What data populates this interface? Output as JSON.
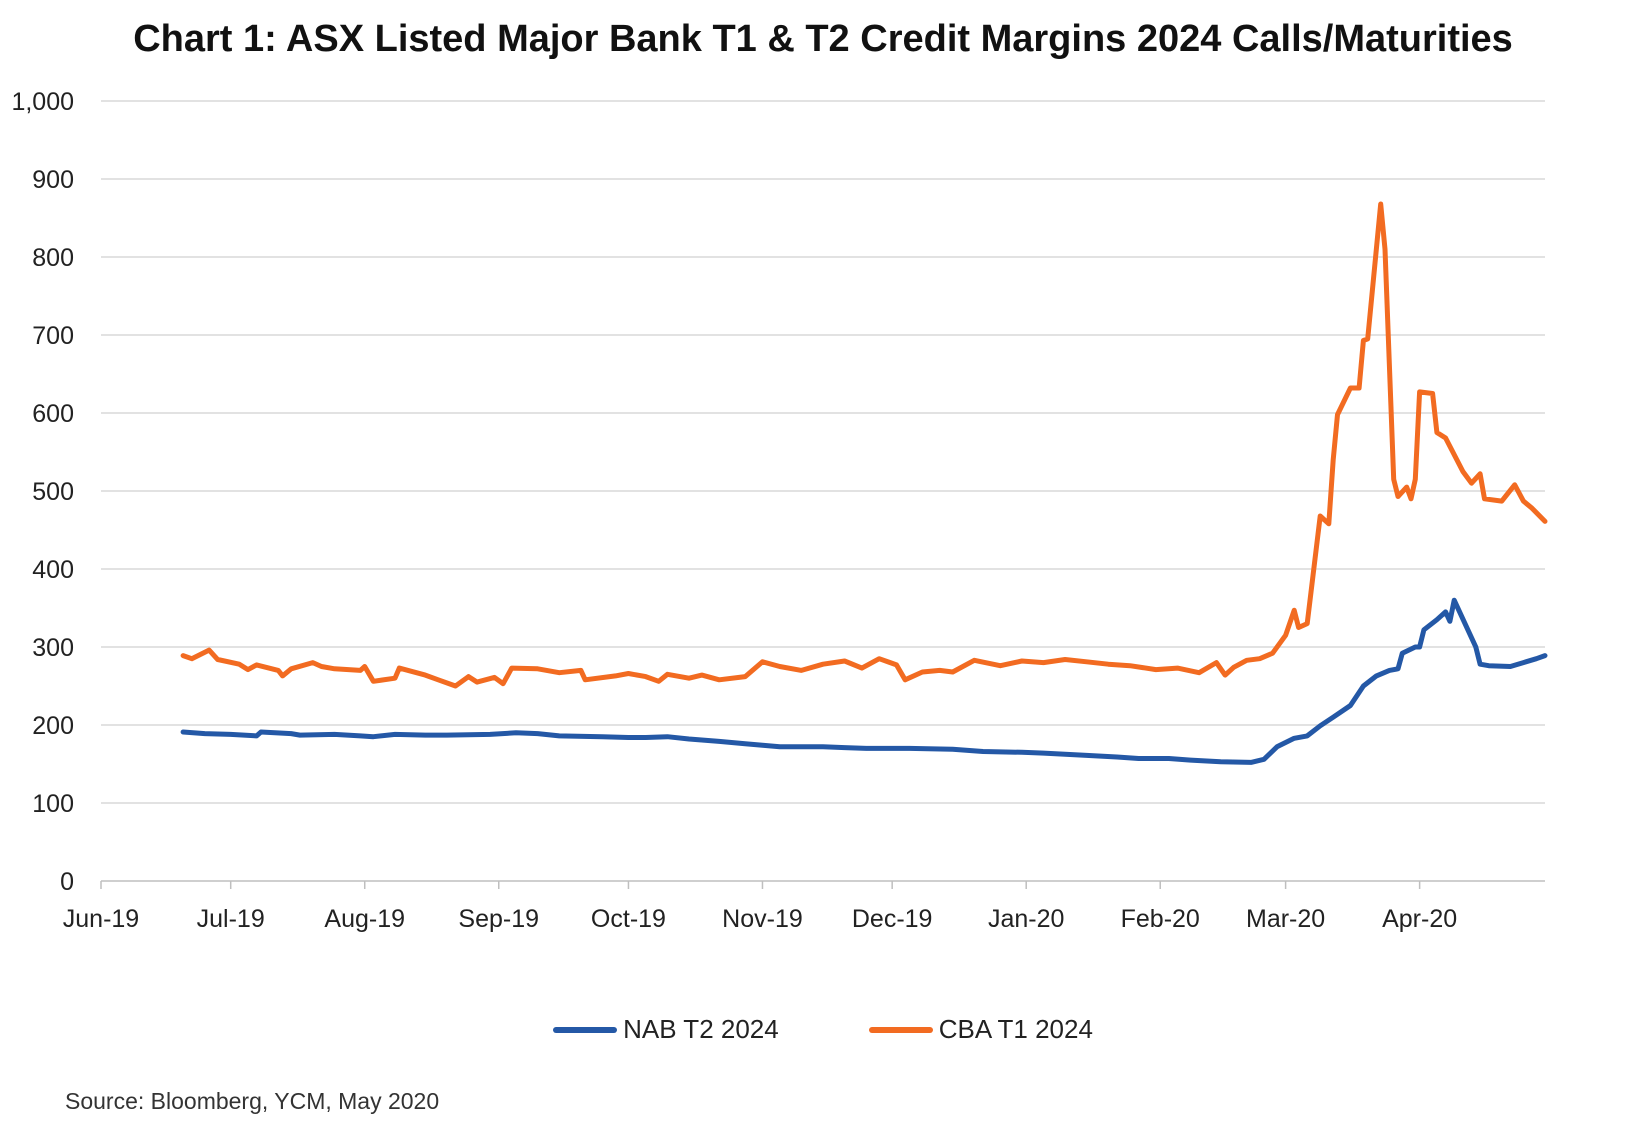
{
  "chart_data": {
    "type": "line",
    "title": "Chart 1: ASX Listed Major Bank T1 & T2 Credit Margins 2024 Calls/Maturities",
    "xlabel": "",
    "ylabel": "",
    "ylim": [
      0,
      1000
    ],
    "yticks": [
      0,
      100,
      200,
      300,
      400,
      500,
      600,
      700,
      800,
      900,
      1000
    ],
    "ytick_labels": [
      "0",
      "100",
      "200",
      "300",
      "400",
      "500",
      "600",
      "700",
      "800",
      "900",
      "1,000"
    ],
    "xlim": [
      "2019-06-01",
      "2020-04-30"
    ],
    "xticks": [
      "2019-06-01",
      "2019-07-01",
      "2019-08-01",
      "2019-09-01",
      "2019-10-01",
      "2019-11-01",
      "2019-12-01",
      "2020-01-01",
      "2020-02-01",
      "2020-03-01",
      "2020-04-01"
    ],
    "xtick_labels": [
      "Jun-19",
      "Jul-19",
      "Aug-19",
      "Sep-19",
      "Oct-19",
      "Nov-19",
      "Dec-19",
      "Jan-20",
      "Feb-20",
      "Mar-20",
      "Apr-20"
    ],
    "grid": true,
    "legend_position": "bottom",
    "series": [
      {
        "name": "NAB T2 2024",
        "color": "#2458a6",
        "points": [
          [
            "2019-06-20",
            191
          ],
          [
            "2019-06-25",
            189
          ],
          [
            "2019-07-01",
            188
          ],
          [
            "2019-07-07",
            186
          ],
          [
            "2019-07-08",
            191
          ],
          [
            "2019-07-15",
            189
          ],
          [
            "2019-07-17",
            187
          ],
          [
            "2019-07-25",
            188
          ],
          [
            "2019-07-31",
            186
          ],
          [
            "2019-08-03",
            185
          ],
          [
            "2019-08-08",
            188
          ],
          [
            "2019-08-15",
            187
          ],
          [
            "2019-08-20",
            187
          ],
          [
            "2019-08-30",
            188
          ],
          [
            "2019-09-05",
            190
          ],
          [
            "2019-09-10",
            189
          ],
          [
            "2019-09-15",
            186
          ],
          [
            "2019-09-25",
            185
          ],
          [
            "2019-10-01",
            184
          ],
          [
            "2019-10-05",
            184
          ],
          [
            "2019-10-10",
            185
          ],
          [
            "2019-10-15",
            182
          ],
          [
            "2019-10-22",
            179
          ],
          [
            "2019-10-28",
            176
          ],
          [
            "2019-11-01",
            174
          ],
          [
            "2019-11-05",
            172
          ],
          [
            "2019-11-15",
            172
          ],
          [
            "2019-11-20",
            171
          ],
          [
            "2019-11-25",
            170
          ],
          [
            "2019-12-05",
            170
          ],
          [
            "2019-12-15",
            169
          ],
          [
            "2019-12-22",
            166
          ],
          [
            "2019-12-31",
            165
          ],
          [
            "2020-01-05",
            164
          ],
          [
            "2020-01-15",
            161
          ],
          [
            "2020-01-22",
            159
          ],
          [
            "2020-01-27",
            157
          ],
          [
            "2020-02-03",
            157
          ],
          [
            "2020-02-08",
            155
          ],
          [
            "2020-02-15",
            153
          ],
          [
            "2020-02-22",
            152
          ],
          [
            "2020-02-25",
            156
          ],
          [
            "2020-02-28",
            172
          ],
          [
            "2020-03-03",
            183
          ],
          [
            "2020-03-06",
            186
          ],
          [
            "2020-03-09",
            199
          ],
          [
            "2020-03-12",
            210
          ],
          [
            "2020-03-16",
            225
          ],
          [
            "2020-03-19",
            250
          ],
          [
            "2020-03-22",
            263
          ],
          [
            "2020-03-25",
            270
          ],
          [
            "2020-03-27",
            272
          ],
          [
            "2020-03-28",
            292
          ],
          [
            "2020-03-31",
            300
          ],
          [
            "2020-04-01",
            300
          ],
          [
            "2020-04-02",
            322
          ],
          [
            "2020-04-05",
            335
          ],
          [
            "2020-04-07",
            345
          ],
          [
            "2020-04-08",
            333
          ],
          [
            "2020-04-09",
            360
          ],
          [
            "2020-04-14",
            300
          ],
          [
            "2020-04-15",
            278
          ],
          [
            "2020-04-17",
            276
          ],
          [
            "2020-04-22",
            275
          ],
          [
            "2020-04-25",
            280
          ],
          [
            "2020-04-28",
            285
          ],
          [
            "2020-04-30",
            289
          ]
        ]
      },
      {
        "name": "CBA T1 2024",
        "color": "#f26b21",
        "points": [
          [
            "2019-06-20",
            289
          ],
          [
            "2019-06-22",
            285
          ],
          [
            "2019-06-26",
            296
          ],
          [
            "2019-06-28",
            284
          ],
          [
            "2019-07-03",
            278
          ],
          [
            "2019-07-05",
            271
          ],
          [
            "2019-07-07",
            277
          ],
          [
            "2019-07-12",
            270
          ],
          [
            "2019-07-13",
            263
          ],
          [
            "2019-07-15",
            272
          ],
          [
            "2019-07-20",
            280
          ],
          [
            "2019-07-22",
            275
          ],
          [
            "2019-07-25",
            272
          ],
          [
            "2019-07-31",
            270
          ],
          [
            "2019-08-01",
            275
          ],
          [
            "2019-08-03",
            256
          ],
          [
            "2019-08-08",
            260
          ],
          [
            "2019-08-09",
            273
          ],
          [
            "2019-08-15",
            264
          ],
          [
            "2019-08-18",
            258
          ],
          [
            "2019-08-22",
            250
          ],
          [
            "2019-08-25",
            262
          ],
          [
            "2019-08-27",
            255
          ],
          [
            "2019-08-31",
            261
          ],
          [
            "2019-09-02",
            253
          ],
          [
            "2019-09-04",
            273
          ],
          [
            "2019-09-10",
            272
          ],
          [
            "2019-09-15",
            267
          ],
          [
            "2019-09-20",
            270
          ],
          [
            "2019-09-21",
            258
          ],
          [
            "2019-09-28",
            263
          ],
          [
            "2019-10-01",
            266
          ],
          [
            "2019-10-05",
            262
          ],
          [
            "2019-10-08",
            256
          ],
          [
            "2019-10-10",
            265
          ],
          [
            "2019-10-15",
            260
          ],
          [
            "2019-10-18",
            264
          ],
          [
            "2019-10-22",
            258
          ],
          [
            "2019-10-28",
            262
          ],
          [
            "2019-11-01",
            281
          ],
          [
            "2019-11-05",
            275
          ],
          [
            "2019-11-10",
            270
          ],
          [
            "2019-11-15",
            278
          ],
          [
            "2019-11-20",
            282
          ],
          [
            "2019-11-24",
            273
          ],
          [
            "2019-11-28",
            285
          ],
          [
            "2019-12-02",
            277
          ],
          [
            "2019-12-04",
            258
          ],
          [
            "2019-12-08",
            268
          ],
          [
            "2019-12-12",
            270
          ],
          [
            "2019-12-15",
            268
          ],
          [
            "2019-12-20",
            283
          ],
          [
            "2019-12-26",
            276
          ],
          [
            "2019-12-31",
            282
          ],
          [
            "2020-01-05",
            280
          ],
          [
            "2020-01-10",
            284
          ],
          [
            "2020-01-15",
            281
          ],
          [
            "2020-01-20",
            278
          ],
          [
            "2020-01-25",
            276
          ],
          [
            "2020-01-31",
            271
          ],
          [
            "2020-02-05",
            273
          ],
          [
            "2020-02-10",
            267
          ],
          [
            "2020-02-14",
            280
          ],
          [
            "2020-02-16",
            264
          ],
          [
            "2020-02-18",
            274
          ],
          [
            "2020-02-21",
            283
          ],
          [
            "2020-02-24",
            285
          ],
          [
            "2020-02-27",
            292
          ],
          [
            "2020-03-01",
            315
          ],
          [
            "2020-03-03",
            347
          ],
          [
            "2020-03-04",
            325
          ],
          [
            "2020-03-06",
            330
          ],
          [
            "2020-03-09",
            468
          ],
          [
            "2020-03-11",
            458
          ],
          [
            "2020-03-12",
            540
          ],
          [
            "2020-03-13",
            598
          ],
          [
            "2020-03-16",
            632
          ],
          [
            "2020-03-18",
            632
          ],
          [
            "2020-03-19",
            693
          ],
          [
            "2020-03-20",
            695
          ],
          [
            "2020-03-23",
            868
          ],
          [
            "2020-03-24",
            810
          ],
          [
            "2020-03-26",
            515
          ],
          [
            "2020-03-27",
            493
          ],
          [
            "2020-03-29",
            505
          ],
          [
            "2020-03-30",
            490
          ],
          [
            "2020-03-31",
            515
          ],
          [
            "2020-04-01",
            627
          ],
          [
            "2020-04-04",
            625
          ],
          [
            "2020-04-05",
            575
          ],
          [
            "2020-04-07",
            568
          ],
          [
            "2020-04-11",
            525
          ],
          [
            "2020-04-13",
            510
          ],
          [
            "2020-04-15",
            522
          ],
          [
            "2020-04-16",
            490
          ],
          [
            "2020-04-20",
            487
          ],
          [
            "2020-04-23",
            508
          ],
          [
            "2020-04-25",
            487
          ],
          [
            "2020-04-27",
            478
          ],
          [
            "2020-04-30",
            461
          ]
        ]
      }
    ]
  },
  "source_note": "Source: Bloomberg, YCM, May 2020"
}
